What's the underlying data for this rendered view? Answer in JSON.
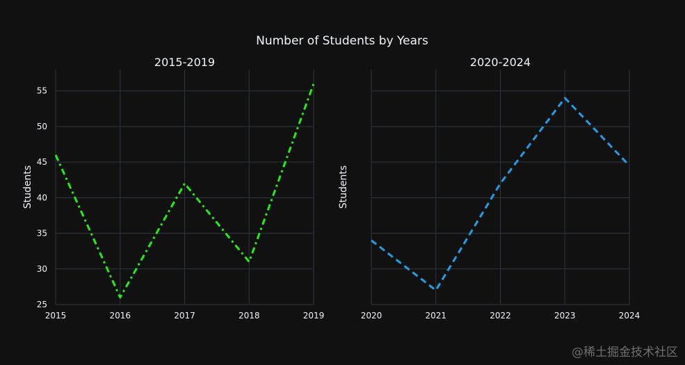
{
  "chart_data": {
    "title": "Number of Students by Years",
    "type": "line",
    "shared_y": {
      "label": "Students",
      "range": [
        25,
        58
      ],
      "ticks": [
        25,
        30,
        35,
        40,
        45,
        50,
        55
      ]
    },
    "grid": true,
    "subplots": [
      {
        "title": "2015-2019",
        "ylabel": "Students",
        "x": [
          2015,
          2016,
          2017,
          2018,
          2019
        ],
        "xlim": [
          2015,
          2019
        ],
        "series": [
          {
            "values": [
              46,
              26,
              42,
              31,
              56
            ],
            "color": "#22ee11",
            "dash": "dashdot"
          }
        ]
      },
      {
        "title": "2020-2024",
        "ylabel": "Students",
        "x": [
          2020,
          2021,
          2022,
          2023,
          2024
        ],
        "xlim": [
          2020,
          2024
        ],
        "series": [
          {
            "values": [
              34,
              27,
              42,
              54,
              44.5
            ],
            "color": "#1e9fe6",
            "dash": "dash"
          }
        ]
      }
    ]
  },
  "watermark": "@稀土掘金技术社区",
  "colors": {
    "background": "#111111",
    "grid": "#2f3640",
    "text": "#f2f5fa"
  }
}
